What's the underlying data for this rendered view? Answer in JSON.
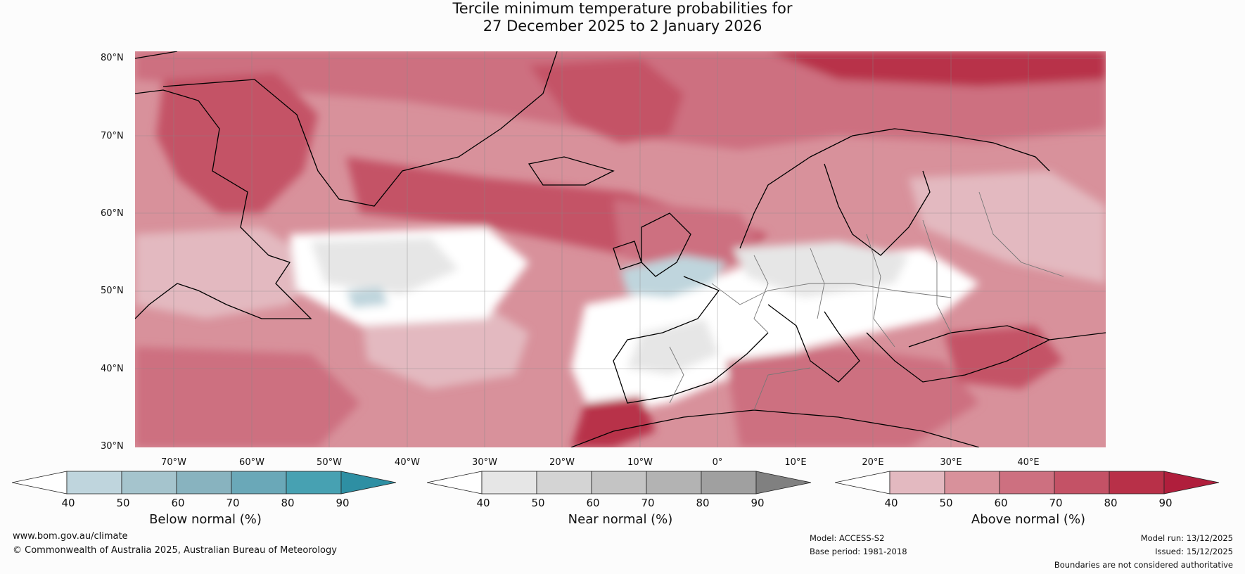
{
  "title_line1": "Tercile minimum temperature probabilities for",
  "title_line2": "27 December 2025 to 2 January 2026",
  "lat_labels": [
    "80°N",
    "70°N",
    "60°N",
    "50°N",
    "40°N",
    "30°N"
  ],
  "lon_labels": [
    "70°W",
    "60°W",
    "50°W",
    "40°W",
    "30°W",
    "20°W",
    "10°W",
    "0°",
    "10°E",
    "20°E",
    "30°E",
    "40°E"
  ],
  "colorbars": {
    "below": {
      "title": "Below normal (%)",
      "ticks": [
        "40",
        "50",
        "60",
        "70",
        "80",
        "90"
      ],
      "colors": [
        "#ffffff",
        "#bfd5dd",
        "#a5c4cd",
        "#88b3bf",
        "#6aa8b8",
        "#47a1b2",
        "#2e8fa3"
      ]
    },
    "near": {
      "title": "Near normal (%)",
      "ticks": [
        "40",
        "50",
        "60",
        "70",
        "80",
        "90"
      ],
      "colors": [
        "#ffffff",
        "#e6e6e6",
        "#d4d4d4",
        "#c4c4c4",
        "#b3b3b3",
        "#a0a0a0",
        "#808080"
      ]
    },
    "above": {
      "title": "Above normal (%)",
      "ticks": [
        "40",
        "50",
        "60",
        "70",
        "80",
        "90"
      ],
      "colors": [
        "#ffffff",
        "#e3b9c0",
        "#d8919b",
        "#cd7080",
        "#c45266",
        "#b83048",
        "#b01e3c"
      ]
    }
  },
  "footer": {
    "website": "www.bom.gov.au/climate",
    "copyright": "© Commonwealth of Australia 2025, Australian Bureau of Meteorology",
    "model": "Model: ACCESS-S2",
    "base_period": "Base period: 1981-2018",
    "model_run": "Model run: 13/12/2025",
    "issued": "Issued: 15/12/2025",
    "disclaimer": "Boundaries are not considered authoritative"
  }
}
